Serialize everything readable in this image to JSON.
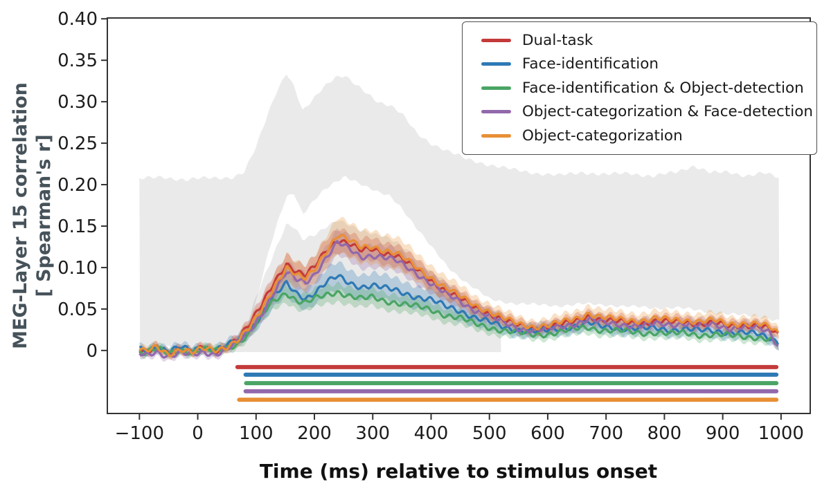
{
  "figure": {
    "x_label": "Time (ms) relative to stimulus onset",
    "y_label_line1": "MEG-Layer 15 correlation",
    "y_label_line2": "[ Spearman's r]"
  },
  "legend": {
    "items": [
      {
        "label": "Dual-task",
        "color": "#c43a3a"
      },
      {
        "label": "Face-identification",
        "color": "#2e79b5"
      },
      {
        "label": "Face-identification & Object-detection",
        "color": "#4aa564"
      },
      {
        "label": "Object-categorization & Face-detection",
        "color": "#9268ab"
      },
      {
        "label": "Object-categorization",
        "color": "#e88f35"
      }
    ]
  },
  "chart_data": {
    "type": "line",
    "title": "",
    "xlabel": "Time (ms) relative to stimulus onset",
    "ylabel": "MEG-Layer 15 correlation [ Spearman's r]",
    "xlim": [
      -155,
      1050
    ],
    "ylim": [
      -0.076,
      0.401
    ],
    "grid": false,
    "legend_position": "upper right",
    "x_ticks": {
      "values": [
        -100,
        0,
        100,
        200,
        300,
        400,
        500,
        600,
        700,
        800,
        900,
        1000
      ],
      "labels": [
        "−100",
        "0",
        "100",
        "200",
        "300",
        "400",
        "500",
        "600",
        "700",
        "800",
        "900",
        "1000"
      ]
    },
    "y_ticks": {
      "values": [
        0,
        0.05,
        0.1,
        0.15,
        0.2,
        0.25,
        0.3,
        0.35,
        0.4
      ],
      "labels": [
        "0",
        "0.05",
        "0.10",
        "0.15",
        "0.20",
        "0.25",
        "0.30",
        "0.35",
        "0.40"
      ]
    },
    "t_grid": [
      -110,
      -90,
      -70,
      -50,
      -30,
      -10,
      10,
      30,
      50,
      70,
      90,
      110,
      130,
      152,
      170,
      185,
      200,
      220,
      240,
      260,
      280,
      300,
      320,
      340,
      360,
      380,
      400,
      425,
      450,
      475,
      500,
      525,
      550,
      575,
      600,
      625,
      650,
      670,
      690,
      710,
      735,
      760,
      785,
      810,
      835,
      860,
      885,
      910,
      935,
      960,
      980,
      1000
    ],
    "series": [
      {
        "name": "Dual-task",
        "color": "#c43a3a",
        "band_k": 0.07,
        "v": [
          0.002,
          -0.004,
          0.003,
          -0.003,
          0.004,
          -0.002,
          0.003,
          -0.002,
          0.006,
          0.016,
          0.032,
          0.055,
          0.082,
          0.105,
          0.094,
          0.09,
          0.101,
          0.122,
          0.134,
          0.128,
          0.12,
          0.123,
          0.118,
          0.115,
          0.105,
          0.096,
          0.085,
          0.072,
          0.062,
          0.052,
          0.045,
          0.036,
          0.03,
          0.027,
          0.028,
          0.031,
          0.036,
          0.042,
          0.037,
          0.035,
          0.034,
          0.033,
          0.035,
          0.034,
          0.035,
          0.032,
          0.033,
          0.029,
          0.031,
          0.03,
          0.026,
          0.015
        ]
      },
      {
        "name": "Face-identification",
        "color": "#2e79b5",
        "band_k": 0.13,
        "v": [
          0.004,
          0.0,
          0.005,
          -0.001,
          0.003,
          0.0,
          0.004,
          0.001,
          0.006,
          0.012,
          0.025,
          0.045,
          0.065,
          0.08,
          0.068,
          0.063,
          0.07,
          0.082,
          0.089,
          0.081,
          0.077,
          0.079,
          0.075,
          0.072,
          0.068,
          0.064,
          0.061,
          0.053,
          0.048,
          0.04,
          0.034,
          0.028,
          0.025,
          0.023,
          0.024,
          0.027,
          0.03,
          0.033,
          0.029,
          0.028,
          0.027,
          0.026,
          0.027,
          0.025,
          0.026,
          0.024,
          0.024,
          0.022,
          0.021,
          0.02,
          0.016,
          0.008
        ]
      },
      {
        "name": "Face-identification & Object-detection",
        "color": "#4aa564",
        "band_k": 0.09,
        "v": [
          0.001,
          -0.003,
          0.002,
          -0.004,
          0.001,
          -0.002,
          0.001,
          -0.001,
          0.003,
          0.009,
          0.022,
          0.042,
          0.06,
          0.07,
          0.06,
          0.057,
          0.062,
          0.067,
          0.071,
          0.066,
          0.062,
          0.064,
          0.06,
          0.058,
          0.055,
          0.052,
          0.049,
          0.043,
          0.039,
          0.032,
          0.028,
          0.024,
          0.021,
          0.019,
          0.02,
          0.023,
          0.026,
          0.028,
          0.025,
          0.024,
          0.023,
          0.021,
          0.022,
          0.02,
          0.021,
          0.019,
          0.019,
          0.018,
          0.017,
          0.016,
          0.013,
          0.004
        ]
      },
      {
        "name": "Object-categorization & Face-detection",
        "color": "#9268ab",
        "band_k": 0.08,
        "v": [
          -0.002,
          -0.006,
          -0.001,
          -0.007,
          -0.003,
          -0.006,
          -0.002,
          -0.004,
          0.002,
          0.01,
          0.024,
          0.045,
          0.07,
          0.094,
          0.085,
          0.082,
          0.092,
          0.112,
          0.13,
          0.122,
          0.113,
          0.115,
          0.112,
          0.108,
          0.1,
          0.091,
          0.081,
          0.068,
          0.059,
          0.049,
          0.042,
          0.033,
          0.027,
          0.025,
          0.026,
          0.029,
          0.033,
          0.038,
          0.034,
          0.032,
          0.031,
          0.03,
          0.032,
          0.031,
          0.033,
          0.03,
          0.031,
          0.027,
          0.029,
          0.027,
          0.022,
          0.0
        ]
      },
      {
        "name": "Object-categorization",
        "color": "#e88f35",
        "band_k": 0.12,
        "v": [
          0.003,
          -0.002,
          0.004,
          -0.004,
          0.002,
          -0.003,
          0.002,
          0.001,
          0.005,
          0.013,
          0.028,
          0.05,
          0.077,
          0.1,
          0.09,
          0.086,
          0.098,
          0.12,
          0.14,
          0.132,
          0.124,
          0.126,
          0.121,
          0.117,
          0.108,
          0.098,
          0.088,
          0.075,
          0.065,
          0.055,
          0.047,
          0.038,
          0.032,
          0.029,
          0.03,
          0.034,
          0.039,
          0.045,
          0.04,
          0.038,
          0.037,
          0.036,
          0.038,
          0.037,
          0.037,
          0.035,
          0.036,
          0.032,
          0.033,
          0.032,
          0.028,
          0.018
        ]
      }
    ],
    "noise_ceiling": {
      "color": "#000000",
      "opacity": 0.082,
      "upper_band": {
        "t": [
          -100,
          -60,
          -20,
          20,
          60,
          80,
          100,
          120,
          135,
          152,
          165,
          180,
          195,
          215,
          235,
          252,
          270,
          290,
          310,
          330,
          350,
          375,
          400,
          430,
          460,
          500,
          540,
          580,
          620,
          660,
          700,
          740,
          780,
          820,
          850,
          880,
          910,
          940,
          970,
          997
        ],
        "hi": [
          0.207,
          0.209,
          0.206,
          0.208,
          0.209,
          0.215,
          0.245,
          0.285,
          0.313,
          0.335,
          0.318,
          0.288,
          0.3,
          0.318,
          0.33,
          0.331,
          0.32,
          0.31,
          0.3,
          0.296,
          0.285,
          0.262,
          0.25,
          0.24,
          0.231,
          0.224,
          0.218,
          0.214,
          0.211,
          0.215,
          0.212,
          0.214,
          0.21,
          0.215,
          0.223,
          0.214,
          0.215,
          0.211,
          0.214,
          0.208
        ],
        "lo": [
          0.004,
          0.004,
          0.004,
          0.004,
          0.006,
          0.012,
          0.06,
          0.115,
          0.15,
          0.185,
          0.19,
          0.165,
          0.178,
          0.192,
          0.202,
          0.21,
          0.205,
          0.197,
          0.19,
          0.186,
          0.172,
          0.148,
          0.125,
          0.1,
          0.082,
          0.062,
          0.057,
          0.055,
          0.054,
          0.056,
          0.055,
          0.053,
          0.051,
          0.052,
          0.049,
          0.046,
          0.044,
          0.042,
          0.04,
          0.036
        ]
      },
      "lower_band": {
        "t": [
          55,
          80,
          100,
          120,
          135,
          152,
          165,
          180,
          200,
          220,
          240,
          260,
          280,
          300,
          320,
          340,
          360,
          380,
          400,
          430,
          460,
          500,
          520
        ],
        "hi": [
          0.01,
          0.02,
          0.065,
          0.1,
          0.125,
          0.152,
          0.148,
          0.133,
          0.14,
          0.15,
          0.157,
          0.15,
          0.145,
          0.142,
          0.138,
          0.13,
          0.12,
          0.108,
          0.096,
          0.08,
          0.066,
          0.05,
          0.045
        ],
        "lo": -0.002
      }
    },
    "significance_bars": [
      {
        "series": "Dual-task",
        "color": "#c43a3a",
        "t_start": 68,
        "t_end": 992,
        "level": -0.02
      },
      {
        "series": "Face-identification",
        "color": "#2e79b5",
        "t_start": 82,
        "t_end": 992,
        "level": -0.0292
      },
      {
        "series": "Face-identification & Object-detection",
        "color": "#4aa564",
        "t_start": 83,
        "t_end": 992,
        "level": -0.0394
      },
      {
        "series": "Object-categorization & Face-detection",
        "color": "#9268ab",
        "t_start": 82,
        "t_end": 992,
        "level": -0.0492
      },
      {
        "series": "Object-categorization",
        "color": "#e88f35",
        "t_start": 71,
        "t_end": 992,
        "level": -0.0594
      }
    ]
  }
}
